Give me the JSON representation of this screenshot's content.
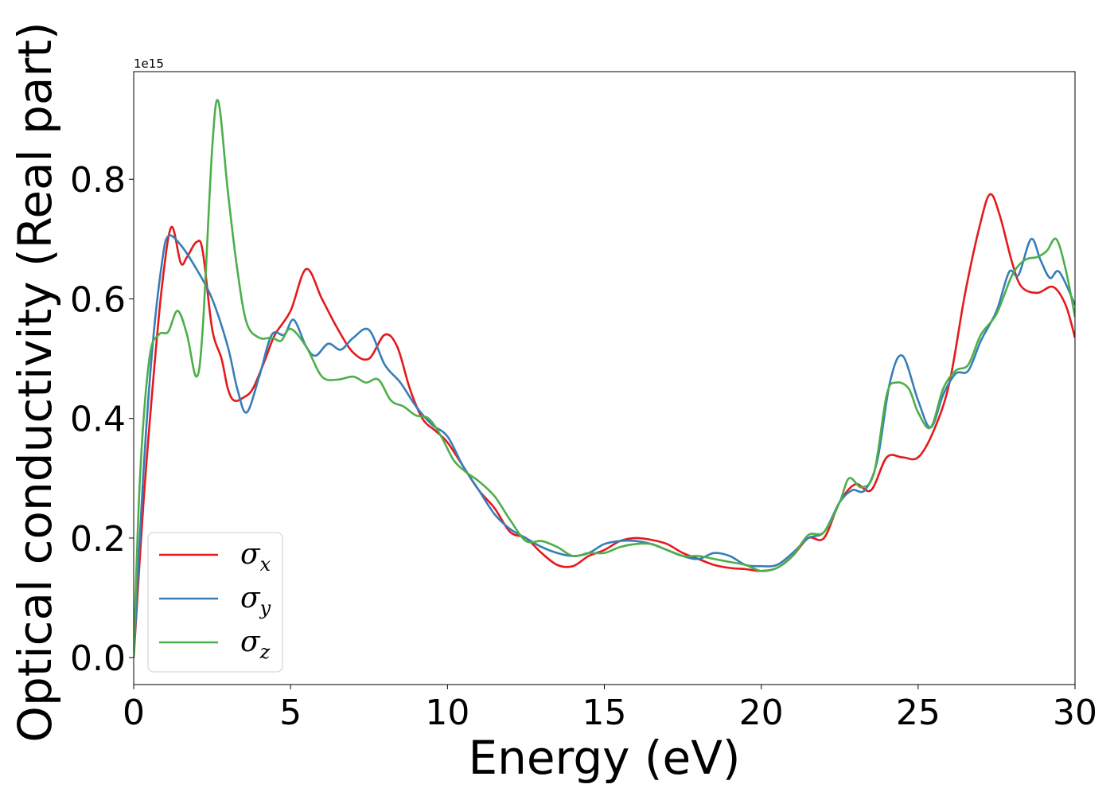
{
  "chart_data": {
    "type": "line",
    "xlabel": "Energy (eV)",
    "ylabel": "Optical conductivity (Real part)",
    "y_offset_label": "1e15",
    "xlim": [
      0,
      30
    ],
    "ylim": [
      -0.045,
      0.98
    ],
    "x_ticks": [
      0,
      5,
      10,
      15,
      20,
      25,
      30
    ],
    "x_tick_labels": [
      "0",
      "5",
      "10",
      "15",
      "20",
      "25",
      "30"
    ],
    "y_ticks": [
      0.0,
      0.2,
      0.4,
      0.6,
      0.8
    ],
    "y_tick_labels": [
      "0.0",
      "0.2",
      "0.4",
      "0.6",
      "0.8"
    ],
    "grid": false,
    "legend_position": "lower-left",
    "series": [
      {
        "name": "σ_x",
        "legend_symbol": "σ",
        "legend_sub": "x",
        "color": "#e41a1c",
        "points": [
          [
            0,
            0.0
          ],
          [
            0.3,
            0.25
          ],
          [
            0.6,
            0.45
          ],
          [
            0.9,
            0.62
          ],
          [
            1.2,
            0.72
          ],
          [
            1.5,
            0.66
          ],
          [
            1.7,
            0.67
          ],
          [
            2.0,
            0.695
          ],
          [
            2.2,
            0.68
          ],
          [
            2.5,
            0.55
          ],
          [
            2.8,
            0.5
          ],
          [
            3.0,
            0.45
          ],
          [
            3.2,
            0.43
          ],
          [
            3.5,
            0.435
          ],
          [
            3.8,
            0.45
          ],
          [
            4.2,
            0.5
          ],
          [
            4.5,
            0.54
          ],
          [
            5.0,
            0.58
          ],
          [
            5.5,
            0.65
          ],
          [
            6.0,
            0.6
          ],
          [
            6.5,
            0.55
          ],
          [
            7.0,
            0.51
          ],
          [
            7.5,
            0.5
          ],
          [
            8.0,
            0.54
          ],
          [
            8.4,
            0.52
          ],
          [
            8.8,
            0.45
          ],
          [
            9.2,
            0.4
          ],
          [
            9.6,
            0.38
          ],
          [
            10.0,
            0.36
          ],
          [
            10.5,
            0.32
          ],
          [
            11.0,
            0.28
          ],
          [
            11.5,
            0.25
          ],
          [
            12.0,
            0.21
          ],
          [
            12.5,
            0.2
          ],
          [
            13.0,
            0.175
          ],
          [
            13.5,
            0.155
          ],
          [
            14.0,
            0.153
          ],
          [
            14.5,
            0.17
          ],
          [
            15.0,
            0.18
          ],
          [
            15.5,
            0.195
          ],
          [
            16.0,
            0.2
          ],
          [
            16.5,
            0.197
          ],
          [
            17.0,
            0.19
          ],
          [
            17.5,
            0.175
          ],
          [
            18.0,
            0.165
          ],
          [
            18.5,
            0.155
          ],
          [
            19.0,
            0.15
          ],
          [
            19.5,
            0.148
          ],
          [
            20.0,
            0.145
          ],
          [
            20.5,
            0.15
          ],
          [
            21.0,
            0.17
          ],
          [
            21.5,
            0.2
          ],
          [
            22.0,
            0.2
          ],
          [
            22.5,
            0.26
          ],
          [
            23.0,
            0.29
          ],
          [
            23.5,
            0.28
          ],
          [
            24.0,
            0.335
          ],
          [
            24.5,
            0.335
          ],
          [
            25.0,
            0.335
          ],
          [
            25.5,
            0.38
          ],
          [
            26.0,
            0.46
          ],
          [
            26.5,
            0.61
          ],
          [
            27.0,
            0.73
          ],
          [
            27.3,
            0.775
          ],
          [
            27.6,
            0.74
          ],
          [
            28.0,
            0.66
          ],
          [
            28.3,
            0.62
          ],
          [
            28.8,
            0.61
          ],
          [
            29.3,
            0.62
          ],
          [
            29.7,
            0.59
          ],
          [
            30.0,
            0.535
          ]
        ]
      },
      {
        "name": "σ_y",
        "legend_symbol": "σ",
        "legend_sub": "y",
        "color": "#377eb8",
        "points": [
          [
            0,
            0.0
          ],
          [
            0.3,
            0.3
          ],
          [
            0.6,
            0.52
          ],
          [
            0.9,
            0.66
          ],
          [
            1.1,
            0.705
          ],
          [
            1.5,
            0.69
          ],
          [
            2.0,
            0.65
          ],
          [
            2.5,
            0.6
          ],
          [
            3.0,
            0.52
          ],
          [
            3.3,
            0.45
          ],
          [
            3.6,
            0.41
          ],
          [
            4.0,
            0.47
          ],
          [
            4.4,
            0.54
          ],
          [
            4.8,
            0.54
          ],
          [
            5.1,
            0.565
          ],
          [
            5.5,
            0.52
          ],
          [
            5.8,
            0.505
          ],
          [
            6.2,
            0.525
          ],
          [
            6.6,
            0.515
          ],
          [
            7.0,
            0.535
          ],
          [
            7.5,
            0.548
          ],
          [
            8.0,
            0.49
          ],
          [
            8.5,
            0.46
          ],
          [
            9.0,
            0.42
          ],
          [
            9.5,
            0.39
          ],
          [
            10.0,
            0.37
          ],
          [
            10.5,
            0.32
          ],
          [
            11.0,
            0.28
          ],
          [
            11.5,
            0.24
          ],
          [
            12.0,
            0.215
          ],
          [
            12.5,
            0.2
          ],
          [
            13.0,
            0.185
          ],
          [
            13.5,
            0.175
          ],
          [
            14.0,
            0.17
          ],
          [
            14.5,
            0.175
          ],
          [
            15.0,
            0.19
          ],
          [
            15.5,
            0.195
          ],
          [
            16.0,
            0.195
          ],
          [
            16.5,
            0.19
          ],
          [
            17.0,
            0.18
          ],
          [
            17.5,
            0.17
          ],
          [
            18.0,
            0.165
          ],
          [
            18.5,
            0.175
          ],
          [
            19.0,
            0.17
          ],
          [
            19.5,
            0.155
          ],
          [
            20.0,
            0.153
          ],
          [
            20.5,
            0.155
          ],
          [
            21.0,
            0.175
          ],
          [
            21.5,
            0.2
          ],
          [
            22.0,
            0.21
          ],
          [
            22.5,
            0.26
          ],
          [
            22.9,
            0.28
          ],
          [
            23.3,
            0.28
          ],
          [
            23.7,
            0.33
          ],
          [
            24.1,
            0.46
          ],
          [
            24.5,
            0.505
          ],
          [
            25.0,
            0.43
          ],
          [
            25.4,
            0.385
          ],
          [
            25.8,
            0.44
          ],
          [
            26.2,
            0.475
          ],
          [
            26.6,
            0.48
          ],
          [
            27.0,
            0.53
          ],
          [
            27.5,
            0.58
          ],
          [
            27.9,
            0.645
          ],
          [
            28.2,
            0.64
          ],
          [
            28.6,
            0.7
          ],
          [
            28.9,
            0.665
          ],
          [
            29.2,
            0.635
          ],
          [
            29.5,
            0.645
          ],
          [
            30.0,
            0.59
          ]
        ]
      },
      {
        "name": "σ_z",
        "legend_symbol": "σ",
        "legend_sub": "z",
        "color": "#4daf4a",
        "points": [
          [
            0,
            0.0
          ],
          [
            0.2,
            0.3
          ],
          [
            0.5,
            0.5
          ],
          [
            0.8,
            0.54
          ],
          [
            1.1,
            0.545
          ],
          [
            1.4,
            0.58
          ],
          [
            1.7,
            0.54
          ],
          [
            2.0,
            0.47
          ],
          [
            2.2,
            0.55
          ],
          [
            2.5,
            0.85
          ],
          [
            2.7,
            0.93
          ],
          [
            3.0,
            0.78
          ],
          [
            3.3,
            0.65
          ],
          [
            3.6,
            0.56
          ],
          [
            4.0,
            0.535
          ],
          [
            4.4,
            0.535
          ],
          [
            4.7,
            0.53
          ],
          [
            5.0,
            0.55
          ],
          [
            5.5,
            0.52
          ],
          [
            6.0,
            0.47
          ],
          [
            6.5,
            0.465
          ],
          [
            7.0,
            0.47
          ],
          [
            7.4,
            0.46
          ],
          [
            7.8,
            0.465
          ],
          [
            8.2,
            0.43
          ],
          [
            8.6,
            0.42
          ],
          [
            9.0,
            0.405
          ],
          [
            9.4,
            0.4
          ],
          [
            9.8,
            0.37
          ],
          [
            10.2,
            0.33
          ],
          [
            10.6,
            0.31
          ],
          [
            11.0,
            0.295
          ],
          [
            11.5,
            0.27
          ],
          [
            12.0,
            0.23
          ],
          [
            12.5,
            0.195
          ],
          [
            13.0,
            0.195
          ],
          [
            13.5,
            0.185
          ],
          [
            14.0,
            0.17
          ],
          [
            14.5,
            0.175
          ],
          [
            15.0,
            0.175
          ],
          [
            15.5,
            0.185
          ],
          [
            16.0,
            0.19
          ],
          [
            16.5,
            0.19
          ],
          [
            17.0,
            0.18
          ],
          [
            17.5,
            0.17
          ],
          [
            18.0,
            0.17
          ],
          [
            18.5,
            0.165
          ],
          [
            19.0,
            0.16
          ],
          [
            19.5,
            0.155
          ],
          [
            20.0,
            0.145
          ],
          [
            20.5,
            0.15
          ],
          [
            21.0,
            0.17
          ],
          [
            21.5,
            0.205
          ],
          [
            22.0,
            0.21
          ],
          [
            22.5,
            0.26
          ],
          [
            22.8,
            0.3
          ],
          [
            23.2,
            0.285
          ],
          [
            23.6,
            0.31
          ],
          [
            24.0,
            0.44
          ],
          [
            24.3,
            0.46
          ],
          [
            24.7,
            0.45
          ],
          [
            25.0,
            0.41
          ],
          [
            25.4,
            0.385
          ],
          [
            25.8,
            0.45
          ],
          [
            26.2,
            0.48
          ],
          [
            26.6,
            0.49
          ],
          [
            27.0,
            0.54
          ],
          [
            27.5,
            0.575
          ],
          [
            28.0,
            0.64
          ],
          [
            28.4,
            0.665
          ],
          [
            28.8,
            0.67
          ],
          [
            29.1,
            0.68
          ],
          [
            29.4,
            0.7
          ],
          [
            29.7,
            0.65
          ],
          [
            30.0,
            0.57
          ]
        ]
      }
    ]
  }
}
